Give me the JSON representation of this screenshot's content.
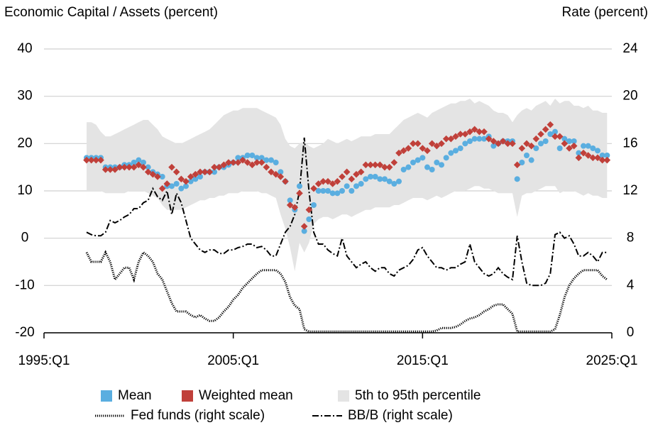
{
  "chart_data": {
    "type": "line",
    "y_label": "Economic Capital / Assets (percent)",
    "y2_label": "Rate (percent)",
    "xlim": [
      1995,
      2025
    ],
    "xticks": [
      {
        "value": 1995,
        "label": "1995:Q1"
      },
      {
        "value": 2005,
        "label": "2005:Q1"
      },
      {
        "value": 2015,
        "label": "2015:Q1"
      },
      {
        "value": 2025,
        "label": "2025:Q1"
      }
    ],
    "ylim": [
      -20,
      40
    ],
    "yticks": [
      -20,
      -10,
      0,
      10,
      20,
      30,
      40
    ],
    "y2lim": [
      0,
      24
    ],
    "y2ticks": [
      0,
      4,
      8,
      12,
      16,
      20,
      24
    ],
    "grid": true,
    "x": [
      1997.25,
      1997.5,
      1997.75,
      1998,
      1998.25,
      1998.5,
      1998.75,
      1999,
      1999.25,
      1999.5,
      1999.75,
      2000,
      2000.25,
      2000.5,
      2000.75,
      2001,
      2001.25,
      2001.5,
      2001.75,
      2002,
      2002.25,
      2002.5,
      2002.75,
      2003,
      2003.25,
      2003.5,
      2003.75,
      2004,
      2004.25,
      2004.5,
      2004.75,
      2005,
      2005.25,
      2005.5,
      2005.75,
      2006,
      2006.25,
      2006.5,
      2006.75,
      2007,
      2007.25,
      2007.5,
      2007.75,
      2008,
      2008.25,
      2008.5,
      2008.75,
      2009,
      2009.25,
      2009.5,
      2009.75,
      2010,
      2010.25,
      2010.5,
      2010.75,
      2011,
      2011.25,
      2011.5,
      2011.75,
      2012,
      2012.25,
      2012.5,
      2012.75,
      2013,
      2013.25,
      2013.5,
      2013.75,
      2014,
      2014.25,
      2014.5,
      2014.75,
      2015,
      2015.25,
      2015.5,
      2015.75,
      2016,
      2016.25,
      2016.5,
      2016.75,
      2017,
      2017.25,
      2017.5,
      2017.75,
      2018,
      2018.25,
      2018.5,
      2018.75,
      2019,
      2019.25,
      2019.5,
      2019.75,
      2020,
      2020.25,
      2020.5,
      2020.75,
      2021,
      2021.25,
      2021.5,
      2021.75,
      2022,
      2022.25,
      2022.5,
      2022.75,
      2023,
      2023.25,
      2023.5,
      2023.75,
      2024,
      2024.25,
      2024.5,
      2024.75
    ],
    "series": [
      {
        "name": "Mean",
        "kind": "marker",
        "marker": "circle",
        "color": "#5aaee0",
        "values": [
          17,
          17,
          17,
          17,
          15,
          15,
          15,
          15,
          15.5,
          15.5,
          16,
          16.5,
          16,
          15,
          14,
          13.5,
          13,
          11,
          11,
          11.5,
          10.5,
          11,
          12,
          12.5,
          13,
          14,
          14,
          14,
          15,
          15,
          15.5,
          16,
          17,
          17,
          17.5,
          17.5,
          17,
          17,
          16.5,
          16.5,
          16,
          14,
          12,
          8,
          6,
          11,
          1.5,
          4,
          7,
          10,
          10,
          10,
          9.5,
          9.5,
          10,
          11,
          10,
          11,
          11.5,
          12.5,
          13,
          13,
          12.5,
          12.5,
          12,
          11.5,
          12,
          14.5,
          15,
          16,
          16.5,
          17,
          15,
          14.5,
          16,
          15.5,
          17,
          18,
          18.5,
          19,
          20,
          20.5,
          21,
          21,
          21,
          21.5,
          19.5,
          20,
          20.5,
          20.5,
          20.5,
          12.5,
          16,
          17.5,
          16.5,
          19,
          20,
          20.5,
          22,
          22.5,
          19,
          21,
          20.5,
          20.5,
          18,
          19.5,
          19.5,
          19,
          18.5,
          17.5,
          17.5
        ]
      },
      {
        "name": "Weighted mean",
        "kind": "marker",
        "marker": "diamond",
        "color": "#c0403a",
        "values": [
          16.5,
          16.5,
          16.5,
          16.5,
          14.5,
          14.5,
          14.5,
          15,
          15,
          15,
          15,
          15.5,
          15,
          14,
          13.5,
          13,
          10.5,
          11.5,
          15,
          14,
          12.5,
          12,
          13,
          13.5,
          14,
          14,
          14,
          15,
          15,
          15.5,
          16,
          16,
          16,
          16.5,
          16,
          15.5,
          16,
          16,
          15,
          14,
          13.5,
          13,
          12,
          7,
          6.5,
          9.5,
          2.5,
          6,
          10.5,
          11.5,
          12,
          12,
          11.5,
          12,
          13,
          14,
          12.5,
          13.5,
          14,
          15.5,
          15.5,
          15.5,
          15.5,
          15,
          15,
          16,
          18,
          18.5,
          19,
          20,
          20,
          19,
          18.5,
          20,
          19.5,
          20,
          21,
          21,
          21.5,
          22,
          22,
          22.5,
          23,
          22.5,
          22.5,
          21,
          20.5,
          20,
          20.5,
          20,
          20,
          15.5,
          19,
          20,
          19.5,
          21,
          22,
          23,
          24,
          21.5,
          21.5,
          20,
          19,
          19.5,
          17,
          18,
          17.5,
          17,
          17,
          16.5,
          16.5
        ]
      },
      {
        "name": "5th to 95th percentile",
        "kind": "band",
        "color": "#e4e4e4",
        "low": [
          10,
          10,
          10,
          10,
          9.5,
          9.5,
          9.5,
          9.5,
          9.5,
          10,
          10,
          10,
          10,
          9.5,
          9,
          8.5,
          7,
          6,
          6,
          6,
          6,
          6.5,
          7,
          7.5,
          8,
          8,
          8.5,
          8.5,
          9,
          9,
          9.5,
          9.5,
          9.5,
          10,
          10,
          10,
          10,
          9.5,
          9.5,
          9,
          8.5,
          5,
          2,
          -2,
          -7,
          -1,
          -3,
          -1,
          3,
          4,
          4.5,
          4.5,
          4,
          4.5,
          5,
          5,
          4.5,
          5,
          5.5,
          6,
          6,
          6.5,
          6.5,
          6.5,
          6.5,
          7,
          7,
          7.5,
          8,
          8.5,
          8.5,
          8.5,
          8,
          8.5,
          9,
          8.5,
          9,
          9.5,
          10,
          10,
          10,
          10.5,
          11,
          11,
          10.5,
          10.5,
          10,
          9.5,
          9.5,
          9.5,
          9.5,
          4.5,
          9,
          9.5,
          9.5,
          10,
          10.5,
          11,
          11,
          11,
          9.5,
          10,
          10,
          10,
          9.5,
          9,
          9.5,
          9,
          9,
          8.5,
          8.5
        ],
        "high": [
          24.5,
          24.5,
          24,
          22.5,
          21.5,
          21.5,
          22,
          22.5,
          23,
          23.5,
          24,
          24.5,
          25,
          25,
          24,
          23,
          21.5,
          21,
          20.5,
          20,
          20,
          20.5,
          21,
          21.5,
          22,
          22.5,
          23,
          24,
          25,
          26,
          26.5,
          27,
          27,
          27.5,
          27.5,
          27.5,
          27.5,
          27,
          26.5,
          26,
          25.5,
          24,
          21,
          19.5,
          19,
          20,
          20.5,
          19.5,
          19,
          19.5,
          20,
          21,
          20.5,
          20,
          20.5,
          21,
          20.5,
          21,
          21.5,
          21.5,
          21.5,
          22,
          22,
          22,
          22,
          23,
          24,
          25,
          25.5,
          26,
          26.5,
          26,
          25.5,
          26.5,
          27,
          27.5,
          28,
          28.5,
          28.5,
          29,
          29,
          29.5,
          28.5,
          29,
          28.5,
          28,
          27,
          26.5,
          26.5,
          26,
          24.5,
          26,
          27,
          27.5,
          27,
          28,
          28.5,
          29,
          28,
          29.5,
          28.5,
          29,
          29,
          28,
          28,
          27.5,
          28,
          27,
          27,
          26.5,
          26.5
        ]
      },
      {
        "name": "Fed funds (right scale)",
        "kind": "line",
        "dash": "dotted",
        "axis": "y2",
        "color": "#000000",
        "values": [
          6.8,
          6,
          6,
          6,
          6.8,
          6,
          4.5,
          5,
          5.5,
          5.5,
          4.5,
          6,
          6.8,
          6.5,
          6,
          5,
          4.5,
          3.5,
          2.5,
          1.8,
          1.8,
          1.8,
          1.5,
          1.3,
          1.5,
          1.2,
          1,
          1,
          1.3,
          1.8,
          2.2,
          2.8,
          3.2,
          3.8,
          4.2,
          4.6,
          5,
          5.3,
          5.3,
          5.3,
          5.3,
          5,
          4.3,
          3,
          2.3,
          2,
          0.3,
          0.1,
          0.1,
          0.1,
          0.1,
          0.1,
          0.1,
          0.1,
          0.1,
          0.1,
          0.1,
          0.1,
          0.1,
          0.1,
          0.1,
          0.1,
          0.1,
          0.1,
          0.1,
          0.1,
          0.1,
          0.1,
          0.1,
          0.1,
          0.1,
          0.1,
          0.1,
          0.1,
          0.2,
          0.4,
          0.4,
          0.4,
          0.5,
          0.7,
          1,
          1.2,
          1.3,
          1.5,
          1.8,
          2,
          2.3,
          2.4,
          2.4,
          2,
          1.6,
          0.1,
          0.1,
          0.1,
          0.1,
          0.1,
          0.1,
          0.1,
          0.1,
          0.3,
          1.5,
          3,
          4,
          4.6,
          5,
          5.3,
          5.3,
          5.3,
          5.3,
          4.8,
          4.5
        ]
      },
      {
        "name": "BB/B (right scale)",
        "kind": "line",
        "dash": "dashdot",
        "axis": "y2",
        "color": "#000000",
        "values": [
          8.5,
          8.3,
          8.2,
          8.2,
          8.5,
          9.5,
          9.3,
          9.5,
          9.8,
          10,
          10.5,
          10.5,
          11,
          11.2,
          12.2,
          11.5,
          11.2,
          12,
          10,
          11.8,
          11,
          9.5,
          8,
          7.5,
          7,
          6.8,
          7,
          7,
          6.7,
          6.7,
          7,
          7,
          7.2,
          7.3,
          7.5,
          7.5,
          7.2,
          7.3,
          7,
          6.5,
          6.5,
          7.5,
          8.5,
          9,
          10,
          12,
          16.5,
          12,
          8.5,
          7.5,
          7.5,
          7,
          6.7,
          6.5,
          8,
          6.5,
          6,
          5.5,
          5.8,
          6,
          5.5,
          5.2,
          5.5,
          5.5,
          5,
          4.8,
          5.3,
          5.5,
          5.7,
          6.2,
          7,
          7.2,
          6.5,
          6,
          5.5,
          5.5,
          5.3,
          5.5,
          5.5,
          5.8,
          6,
          7.5,
          6,
          5.5,
          5,
          4.8,
          5,
          5.5,
          5,
          4.7,
          4.5,
          8.2,
          6,
          4.2,
          4,
          4,
          4,
          4.2,
          5,
          8.3,
          8.5,
          8,
          8.2,
          7.5,
          6.5,
          6.5,
          6.8,
          6.5,
          6,
          6.8,
          6.8
        ]
      }
    ]
  }
}
